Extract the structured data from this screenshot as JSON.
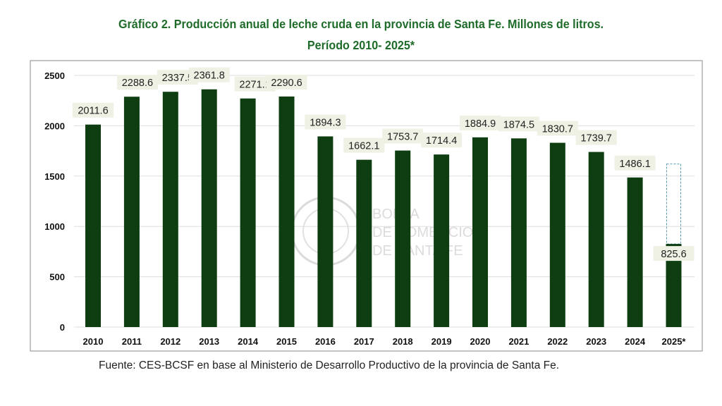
{
  "chart_data": {
    "type": "bar",
    "title": "Gráfico 2. Producción anual de leche cruda en la provincia de Santa Fe. Millones de litros.",
    "subtitle": "Período 2010- 2025*",
    "categories": [
      "2010",
      "2011",
      "2012",
      "2013",
      "2014",
      "2015",
      "2016",
      "2017",
      "2018",
      "2019",
      "2020",
      "2021",
      "2022",
      "2023",
      "2024",
      "2025*"
    ],
    "values": [
      2011.6,
      2288.6,
      2337.5,
      2361.8,
      2271.1,
      2290.6,
      1894.3,
      1662.1,
      1753.7,
      1714.4,
      1884.9,
      1874.5,
      1830.7,
      1739.7,
      1486.1,
      825.6
    ],
    "labels": [
      "2011.6",
      "2288.6",
      "2337.5",
      "2361.8",
      "2271.1",
      "2290.6",
      "1894.3",
      "1662.1",
      "1753.7",
      "1714.4",
      "1884.9",
      "1874.5",
      "1830.7",
      "1739.7",
      "1486.1",
      "825.6"
    ],
    "dashed_outline_2025_top": 1620,
    "ylim": [
      0,
      2500
    ],
    "yticks": [
      0,
      500,
      1000,
      1500,
      2000,
      2500
    ],
    "grid": true,
    "xlabel": "",
    "ylabel": "",
    "bar_color": "#0d3d10",
    "label_bg": "#eef1e4",
    "outline_color": "#5a9ab5",
    "source": "Fuente: CES-BCSF en base al Ministerio de Desarrollo Productivo de la provincia de Santa Fe.",
    "watermark": "BOLSA DE COMERCIO DE SANTA FE"
  }
}
